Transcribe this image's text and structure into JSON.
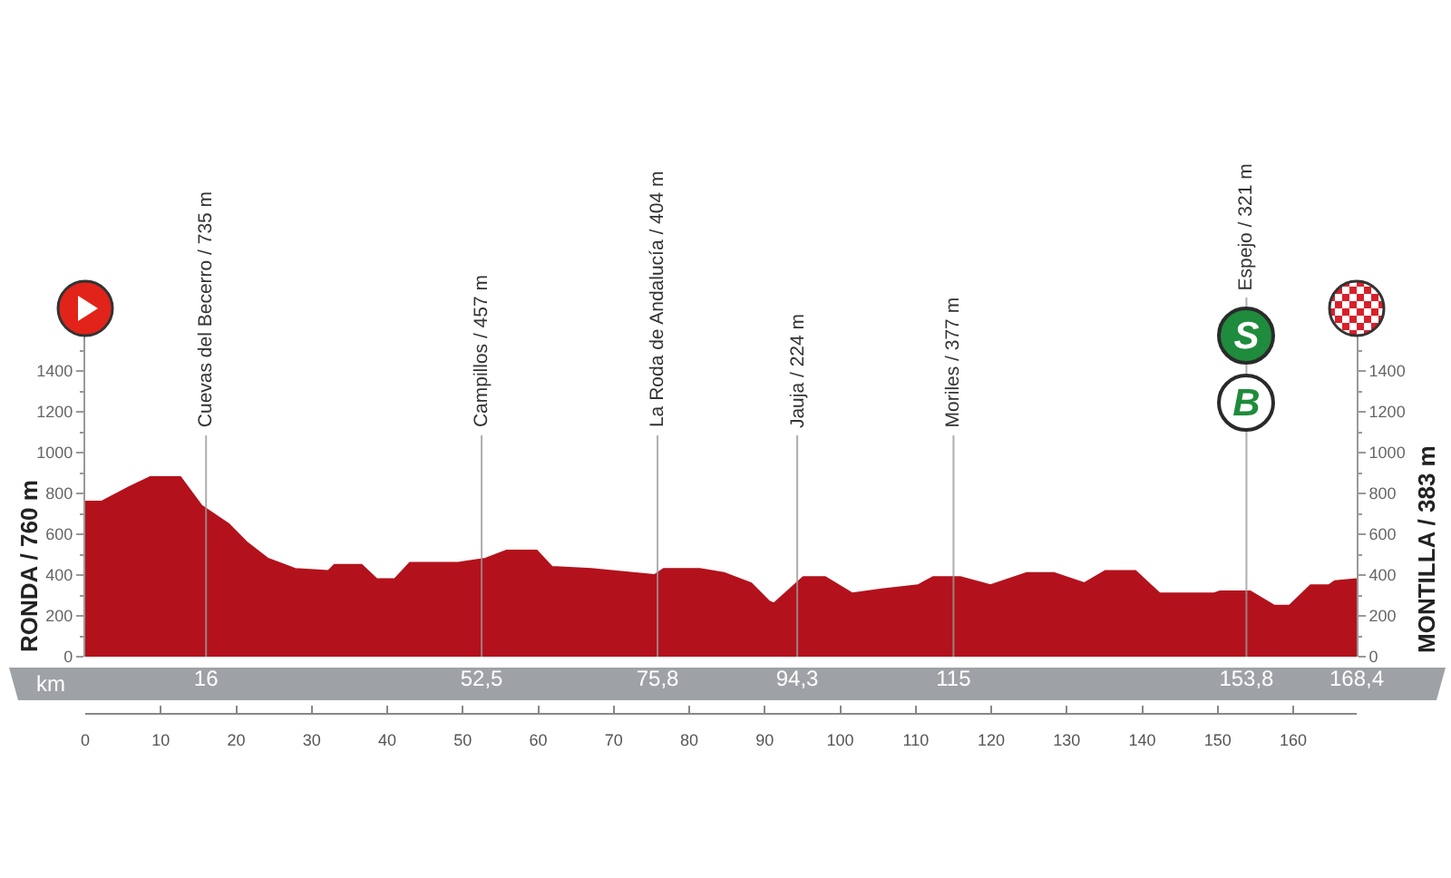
{
  "chart_data": {
    "type": "area",
    "x": [
      0,
      2.2,
      5.8,
      8.6,
      12.6,
      15.4,
      19.0,
      21.4,
      24.2,
      27.8,
      32.2,
      33.0,
      36.6,
      38.6,
      41.0,
      43.0,
      49.4,
      53.0,
      55.8,
      59.8,
      61.8,
      67.0,
      75.4,
      76.6,
      81.4,
      84.6,
      88.2,
      90.6,
      91.2,
      95.1,
      98.0,
      101.6,
      105.5,
      110.3,
      112.3,
      115.9,
      119.9,
      124.7,
      128.3,
      132.3,
      135.1,
      139.1,
      142.3,
      149.5,
      150.3,
      154.3,
      157.5,
      159.5,
      162.3,
      164.7,
      165.5,
      168.4
    ],
    "series": [
      {
        "color": "#b3121c",
        "values": [
          760,
          760,
          830,
          880,
          880,
          740,
          650,
          560,
          480,
          430,
          420,
          450,
          450,
          380,
          380,
          460,
          460,
          480,
          520,
          520,
          440,
          430,
          400,
          430,
          430,
          410,
          360,
          270,
          260,
          390,
          390,
          310,
          330,
          350,
          390,
          390,
          350,
          410,
          410,
          360,
          420,
          420,
          310,
          310,
          320,
          320,
          250,
          250,
          350,
          350,
          370,
          380
        ]
      }
    ],
    "xlabel": "km",
    "ylabel": "RONDA / 760 m",
    "y2label": "MONTILLA / 383 m",
    "xlim": [
      0,
      168.4
    ],
    "xticks": [
      16,
      {
        "value": 52.5,
        "label": "52,5"
      },
      {
        "value": 75.8,
        "label": "75,8"
      },
      {
        "value": 94.3,
        "label": "94,3"
      },
      115,
      {
        "value": 153.8,
        "label": "153,8"
      },
      {
        "value": 168.4,
        "label": "168,4"
      }
    ],
    "x2lim": [
      0,
      168.4
    ],
    "x2ticks": [
      0,
      10,
      20,
      30,
      40,
      50,
      60,
      70,
      80,
      90,
      100,
      110,
      120,
      130,
      140,
      150,
      160
    ],
    "ylim": [
      0,
      1600
    ],
    "yticks": [
      0,
      {
        "value": 100,
        "label": null
      },
      200,
      {
        "value": 300,
        "label": null
      },
      400,
      {
        "value": 500,
        "label": null
      },
      600,
      {
        "value": 700,
        "label": null
      },
      800,
      {
        "value": 900,
        "label": null
      },
      1000,
      {
        "value": 1100,
        "label": null
      },
      1200,
      {
        "value": 1300,
        "label": null
      },
      1400,
      {
        "value": 1500,
        "label": null
      }
    ],
    "y2lim": [
      0,
      1600
    ],
    "y2ticks": [
      0,
      {
        "value": 100,
        "label": null
      },
      200,
      {
        "value": 300,
        "label": null
      },
      400,
      {
        "value": 500,
        "label": null
      },
      600,
      {
        "value": 700,
        "label": null
      },
      800,
      {
        "value": 900,
        "label": null
      },
      1000,
      {
        "value": 1100,
        "label": null
      },
      1200,
      {
        "value": 1300,
        "label": null
      },
      1400,
      {
        "value": 1500,
        "label": null
      }
    ],
    "ref_lines": [
      {
        "axis": "x",
        "value": 16,
        "label": "Cuevas del Becerro / 735 m",
        "color": "#9a9a9a"
      },
      {
        "axis": "x",
        "value": 52.5,
        "label": "Campillos / 457 m",
        "color": "#9a9a9a"
      },
      {
        "axis": "x",
        "value": 75.8,
        "label": "La Roda de Andalucía / 404 m",
        "color": "#9a9a9a"
      },
      {
        "axis": "x",
        "value": 94.3,
        "label": "Jauja / 224 m",
        "color": "#9a9a9a"
      },
      {
        "axis": "x",
        "value": 115,
        "label": "Moriles / 377 m",
        "color": "#9a9a9a"
      },
      {
        "axis": "x",
        "value": 153.8,
        "label": "Espejo / 321 m",
        "color": "#9a9a9a"
      }
    ],
    "annotations": [
      {
        "text": "S",
        "x": 153.8
      },
      {
        "text": "B",
        "x": 153.8
      }
    ]
  }
}
